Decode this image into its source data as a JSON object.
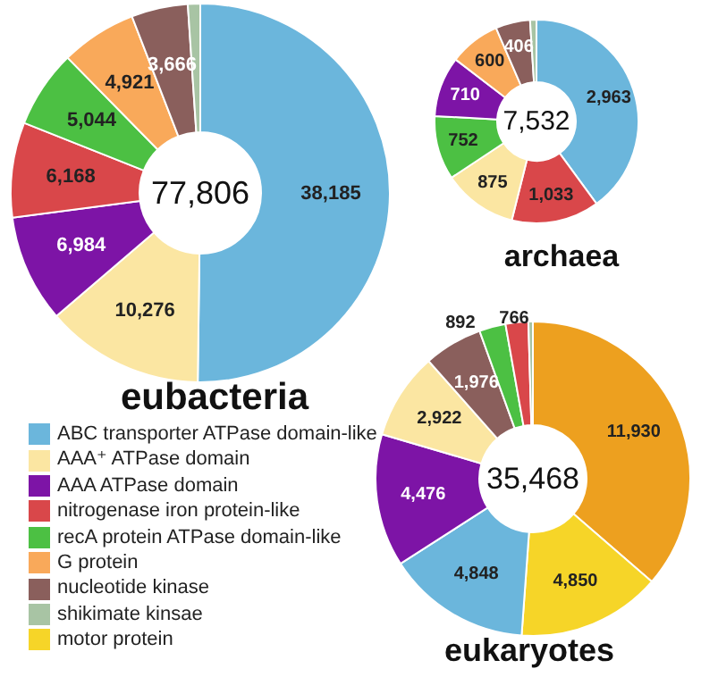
{
  "chart_data": [
    {
      "type": "donut",
      "title": "eubacteria",
      "annotations": [
        "77,806"
      ],
      "legend": "bottom",
      "categories": [
        "ABC transporter ATPase domain-like",
        "AAA⁺ ATPase domain",
        "AAA ATPase domain",
        "nitrogenase iron protein-like",
        "recA protein ATPase domain-like",
        "G protein",
        "nucleotide kinase",
        "shikimate kinsae"
      ],
      "values": [
        38185,
        10276,
        6984,
        6168,
        5044,
        4921,
        3666,
        800
      ],
      "value_labels": [
        "38,185",
        "10,276",
        "6,984",
        "6,168",
        "5,044",
        "4,921",
        "3,666",
        null
      ],
      "colors": [
        "#6bb6dc",
        "#fbe6a2",
        "#7d14a6",
        "#d9474a",
        "#4cc043",
        "#f9a95a",
        "#8a5f5c",
        "#a8c4a4"
      ]
    },
    {
      "type": "donut",
      "title": "archaea",
      "annotations": [
        "7,532"
      ],
      "categories": [
        null,
        null,
        null,
        null,
        null,
        null,
        null,
        null
      ],
      "values": [
        2963,
        1033,
        875,
        752,
        710,
        600,
        406,
        75
      ],
      "value_labels": [
        "2,963",
        "1,033",
        "875",
        "752",
        "710",
        "600",
        "406",
        null
      ],
      "colors": [
        "#6bb6dc",
        "#d9474a",
        "#fbe6a2",
        "#4cc043",
        "#7d14a6",
        "#f9a95a",
        "#8a5f5c",
        "#a8c4a4"
      ]
    },
    {
      "type": "donut",
      "title": "eukaryotes",
      "annotations": [
        "35,468"
      ],
      "categories": [
        null,
        "motor protein",
        null,
        null,
        null,
        null,
        null,
        null,
        null
      ],
      "values": [
        11930,
        4850,
        4848,
        4476,
        2922,
        1976,
        892,
        766,
        150
      ],
      "value_labels": [
        "11,930",
        "4,850",
        "4,848",
        "4,476",
        "2,922",
        "1,976",
        "892",
        "766",
        null
      ],
      "colors": [
        "#eda01f",
        "#f6d528",
        "#6bb6dc",
        "#7d14a6",
        "#fbe6a2",
        "#8a5f5c",
        "#4cc043",
        "#d9474a",
        "#a8c4a4"
      ]
    }
  ]
}
